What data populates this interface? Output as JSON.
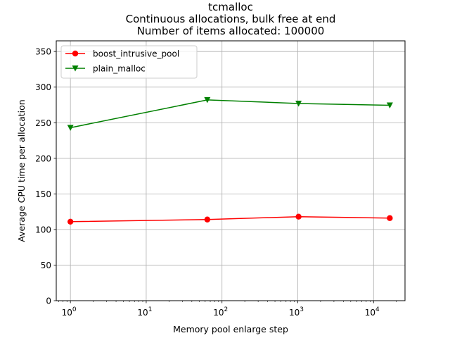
{
  "chart_data": {
    "type": "line",
    "title_lines": [
      "tcmalloc",
      "Continuous allocations, bulk free at end",
      "Number of items allocated: 100000"
    ],
    "xlabel": "Memory pool enlarge step",
    "ylabel": "Average CPU time per allocation",
    "x_scale": "log",
    "xlim": [
      0.65,
      26000
    ],
    "ylim": [
      0,
      365
    ],
    "x_ticks": [
      {
        "value": 1,
        "base": "10",
        "exp": "0"
      },
      {
        "value": 10,
        "base": "10",
        "exp": "1"
      },
      {
        "value": 100,
        "base": "10",
        "exp": "2"
      },
      {
        "value": 1000,
        "base": "10",
        "exp": "3"
      },
      {
        "value": 10000,
        "base": "10",
        "exp": "4"
      }
    ],
    "y_ticks": [
      0,
      50,
      100,
      150,
      200,
      250,
      300,
      350
    ],
    "grid": true,
    "legend_position": "top-left",
    "series": [
      {
        "name": "boost_intrusive_pool",
        "color": "#ff0000",
        "marker": "circle",
        "x": [
          1,
          64,
          1024,
          16384
        ],
        "y": [
          111,
          114,
          118,
          116
        ]
      },
      {
        "name": "plain_malloc",
        "color": "#008000",
        "marker": "triangle-down",
        "x": [
          1,
          64,
          1024,
          16384
        ],
        "y": [
          243,
          282,
          277,
          274.5
        ]
      }
    ]
  }
}
